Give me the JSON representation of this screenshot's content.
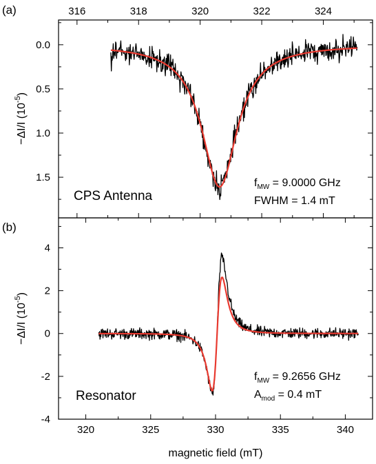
{
  "figure": {
    "xlabel": "magnetic field (mT)",
    "ylabel_prefix": "−ΔI/I (10",
    "ylabel_exp": "-5",
    "ylabel_suffix": ")"
  },
  "chart_data": [
    {
      "panel_label": "(a)",
      "type": "line",
      "xlabel": "magnetic field (mT)",
      "ylabel": "−ΔI/I (10^-5)",
      "xlim": [
        315.4,
        325.6
      ],
      "ylim": [
        1.96,
        -0.28
      ],
      "y_inverted": true,
      "x_axis_position": "top",
      "xticks": [
        316,
        318,
        320,
        322,
        324
      ],
      "xtick_labels": [
        "316",
        "318",
        "320",
        "322",
        "324"
      ],
      "yticks": [
        0.0,
        0.5,
        1.0,
        1.5
      ],
      "ytick_labels": [
        "0.0",
        "0.5",
        "1.0",
        "1.5"
      ],
      "annotation_left": "CPS Antenna",
      "annotation_right": {
        "f_symbol": "f",
        "f_sub": "MW",
        "f_value": " = 9.0000 GHz",
        "line2": "FWHM = 1.4 mT"
      },
      "series": [
        {
          "color": "#000000",
          "x_range": [
            317.1,
            325.1
          ],
          "description_model": "noisy data",
          "center": 320.63,
          "hwhm": 0.7,
          "amplitude": 1.61,
          "noise": 0.11
        },
        {
          "color": "#e8392f",
          "x_range": [
            317.1,
            325.1
          ],
          "description_model": "lorentzian fit",
          "center": 320.63,
          "hwhm": 0.7,
          "amplitude": 1.61
        }
      ]
    },
    {
      "panel_label": "(b)",
      "type": "line",
      "xlabel": "magnetic field (mT)",
      "ylabel": "−ΔI/I (10^-5)",
      "xlim": [
        317.9,
        342.1
      ],
      "ylim": [
        -4,
        5.4
      ],
      "x_axis_position": "bottom",
      "xticks": [
        320,
        325,
        330,
        335,
        340
      ],
      "xtick_labels": [
        "320",
        "325",
        "330",
        "335",
        "340"
      ],
      "yticks": [
        -4,
        -2,
        0,
        2,
        4
      ],
      "ytick_labels": [
        "-4",
        "-2",
        "0",
        "2",
        "4"
      ],
      "annotation_left": "Resonator",
      "annotation_right": {
        "f_symbol": "f",
        "f_sub": "MW",
        "f_value": " = 9.2656 GHz",
        "a_symbol": "A",
        "a_sub": "mod",
        "a_value": " = 0.4 mT"
      },
      "series": [
        {
          "color": "#000000",
          "x_range": [
            321,
            341
          ],
          "description_model": "noisy data",
          "center": 330.12,
          "width": 0.38,
          "min_value": -3.2,
          "max_value": 4.1,
          "noise": 0.22
        },
        {
          "color": "#e8392f",
          "x_range": [
            321,
            341
          ],
          "description_model": "derivative fit",
          "center": 330.12,
          "width": 0.38,
          "min_value": -3.1,
          "max_value": 3.05
        }
      ]
    }
  ]
}
